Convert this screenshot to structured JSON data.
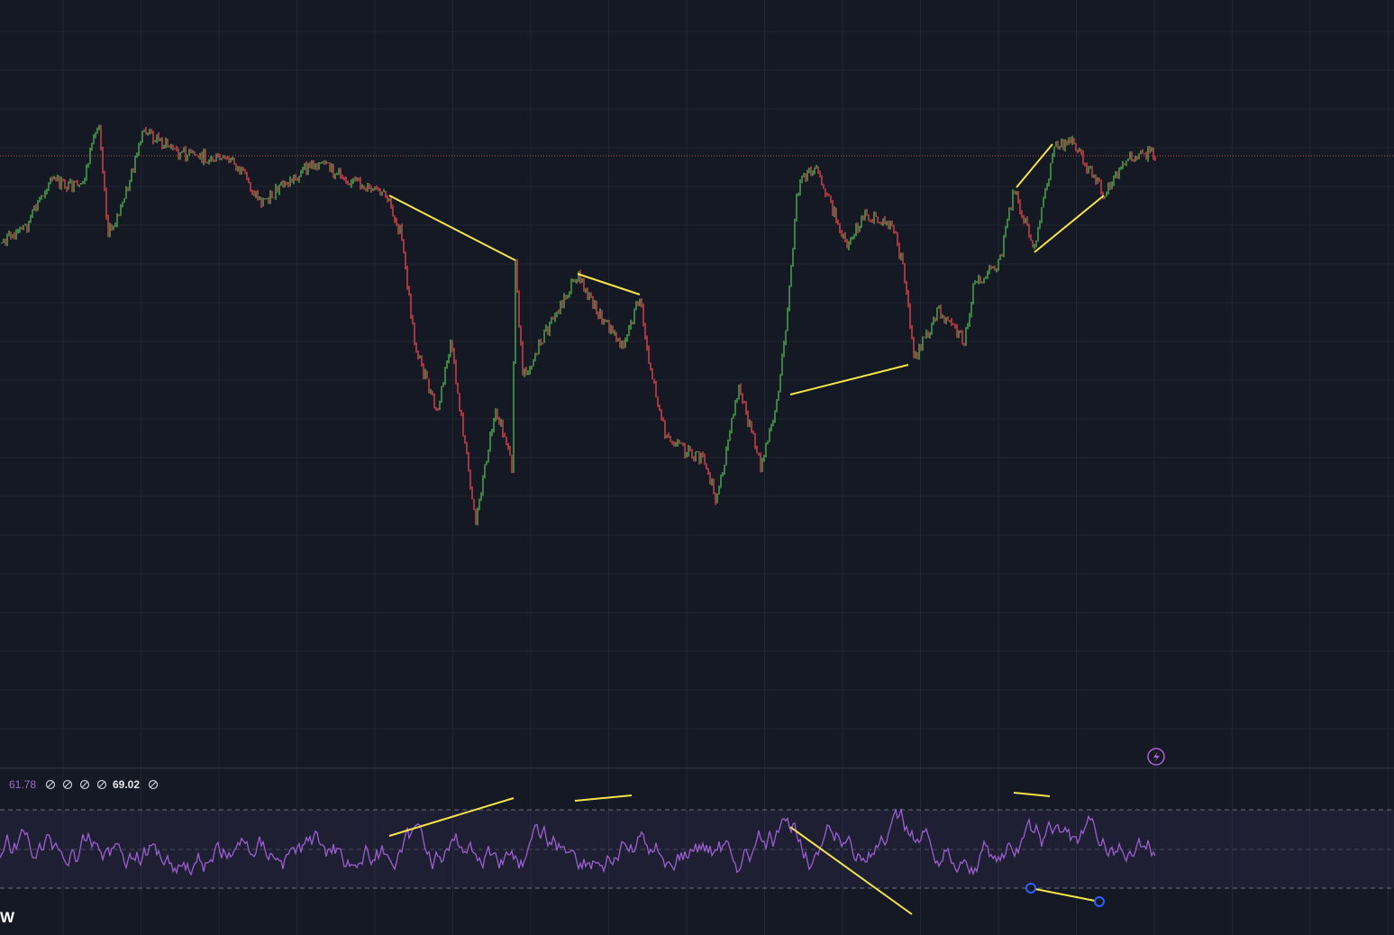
{
  "indicator_legend": {
    "values": [
      "61.78",
      "69.02"
    ]
  },
  "logo": "W"
}
